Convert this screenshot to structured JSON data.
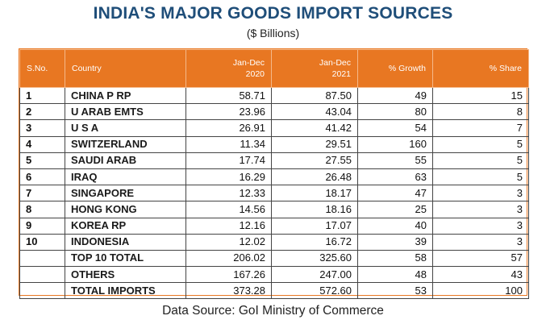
{
  "title": "INDIA'S MAJOR GOODS IMPORT SOURCES",
  "subtitle": "($ Billions)",
  "source": "Data Source: GoI Ministry of Commerce",
  "colors": {
    "header_bg": "#e87722",
    "title": "#1f4e79"
  },
  "chart_data": {
    "type": "table",
    "columns": [
      "S.No.",
      "Country",
      "Jan-Dec 2020",
      "Jan-Dec 2021",
      "% Growth",
      "% Share"
    ],
    "rows": [
      [
        "1",
        "CHINA P RP",
        "58.71",
        "87.50",
        "49",
        "15"
      ],
      [
        "2",
        "U ARAB EMTS",
        "23.96",
        "43.04",
        "80",
        "8"
      ],
      [
        "3",
        "U S A",
        "26.91",
        "41.42",
        "54",
        "7"
      ],
      [
        "4",
        "SWITZERLAND",
        "11.34",
        "29.51",
        "160",
        "5"
      ],
      [
        "5",
        "SAUDI ARAB",
        "17.74",
        "27.55",
        "55",
        "5"
      ],
      [
        "6",
        "IRAQ",
        "16.29",
        "26.48",
        "63",
        "5"
      ],
      [
        "7",
        "SINGAPORE",
        "12.33",
        "18.17",
        "47",
        "3"
      ],
      [
        "8",
        "HONG KONG",
        "14.56",
        "18.16",
        "25",
        "3"
      ],
      [
        "9",
        "KOREA RP",
        "12.16",
        "17.07",
        "40",
        "3"
      ],
      [
        "10",
        "INDONESIA",
        "12.02",
        "16.72",
        "39",
        "3"
      ],
      [
        "",
        "TOP 10 TOTAL",
        "206.02",
        "325.60",
        "58",
        "57"
      ],
      [
        "",
        "OTHERS",
        "167.26",
        "247.00",
        "48",
        "43"
      ],
      [
        "",
        "TOTAL IMPORTS",
        "373.28",
        "572.60",
        "53",
        "100"
      ]
    ]
  }
}
